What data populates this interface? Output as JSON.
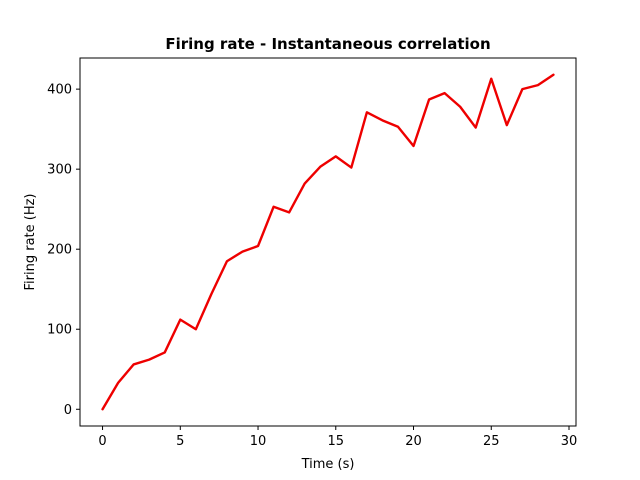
{
  "chart_data": {
    "type": "line",
    "title": "Firing rate - Instantaneous correlation",
    "xlabel": "Time (s)",
    "ylabel": "Firing rate (Hz)",
    "xlim": [
      -1.45,
      30.45
    ],
    "ylim": [
      -20.9,
      438.9
    ],
    "xticks": [
      0,
      5,
      10,
      15,
      20,
      25,
      30
    ],
    "yticks": [
      0,
      100,
      200,
      300,
      400
    ],
    "grid": false,
    "series": [
      {
        "color": "#ee0000",
        "x": [
          0,
          1,
          2,
          3,
          4,
          5,
          6,
          7,
          8,
          9,
          10,
          11,
          12,
          13,
          14,
          15,
          16,
          17,
          18,
          19,
          20,
          21,
          22,
          23,
          24,
          25,
          26,
          27,
          28,
          29
        ],
        "y": [
          0,
          33,
          56,
          62,
          71,
          112,
          100,
          144,
          185,
          197,
          204,
          253,
          246,
          282,
          303,
          316,
          302,
          371,
          361,
          353,
          329,
          387,
          395,
          378,
          352,
          413,
          355,
          400,
          405,
          418
        ]
      }
    ]
  }
}
